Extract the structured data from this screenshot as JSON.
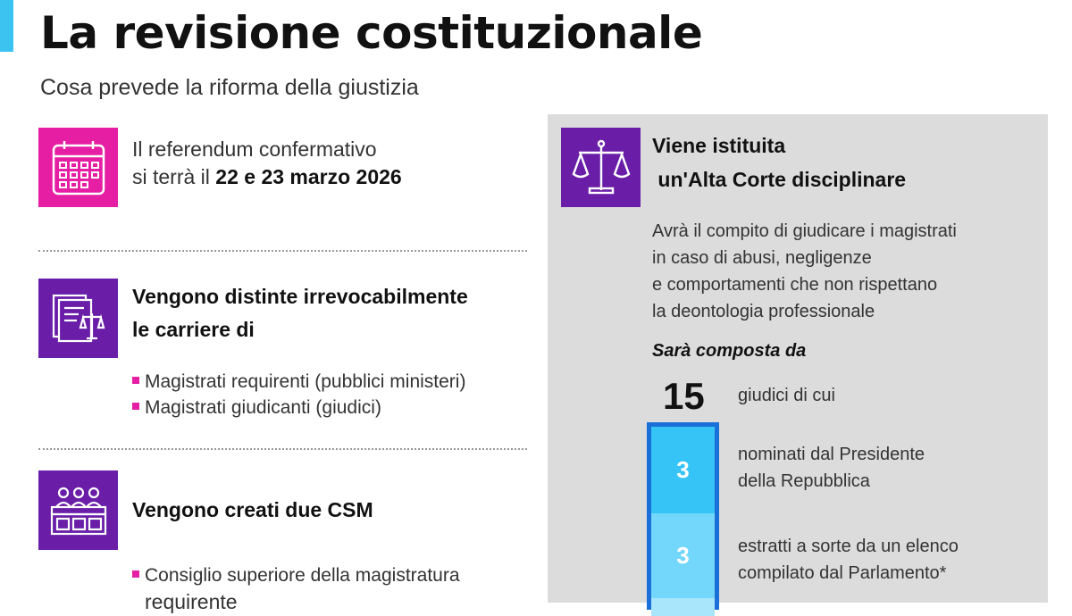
{
  "header": {
    "title": "La revisione costituzionale",
    "subtitle": "Cosa prevede la riforma della giustizia"
  },
  "colors": {
    "accent": "#3cc3f0",
    "pink": "#e51ea3",
    "purple": "#6a1ea8",
    "panel": "#dcdcdc",
    "bar_border": "#1b6fd8",
    "seg1": "#35c4f5",
    "seg2": "#72d7fa"
  },
  "referendum": {
    "icon": "calendar-icon",
    "line1": "Il referendum confermativo",
    "line2_prefix": "si terrà il ",
    "line2_bold": "22 e 23 marzo 2026"
  },
  "carriere": {
    "icon": "documents-scales-icon",
    "title_line1": "Vengono distinte irrevocabilmente",
    "title_line2": "le carriere di",
    "bullets": [
      "Magistrati requirenti (pubblici ministeri)",
      "Magistrati giudicanti (giudici)"
    ]
  },
  "csm": {
    "icon": "council-icon",
    "title": "Vengono creati due CSM",
    "bullets": [
      "Consiglio superiore della magistratura",
      "requirente"
    ]
  },
  "alta_corte": {
    "icon": "scales-icon",
    "title_line1": "Viene istituita",
    "title_line2": " un'Alta Corte disciplinare",
    "desc": [
      "Avrà il compito di giudicare i magistrati",
      "in caso di abusi, negligenze",
      "e comportamenti che non rispettano",
      "la deontologia professionale"
    ],
    "composed": "Sarà composta da",
    "total": "15",
    "total_label": "giudici di cui",
    "segments": [
      {
        "value": "3",
        "line1": "nominati dal Presidente",
        "line2": "della Repubblica"
      },
      {
        "value": "3",
        "line1": "estratti a sorte da un elenco",
        "line2": "compilato dal Parlamento*"
      }
    ]
  }
}
